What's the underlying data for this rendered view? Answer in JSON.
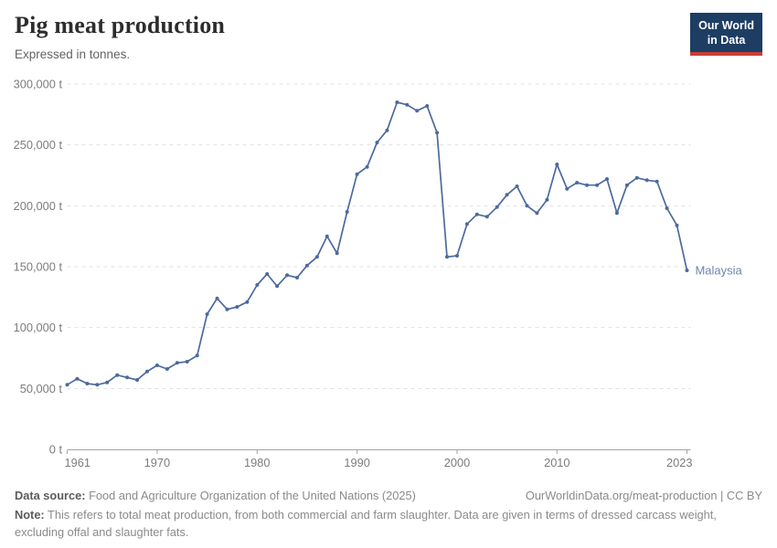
{
  "header": {
    "title": "Pig meat production",
    "subtitle": "Expressed in tonnes.",
    "logo": {
      "line1": "Our World",
      "line2": "in Data",
      "bg_color": "#1d3d63",
      "accent_color": "#cd3d34"
    }
  },
  "chart_data": {
    "type": "line",
    "title": "Pig meat production",
    "subtitle": "Expressed in tonnes.",
    "grid": "horizontal dashed",
    "legend_position": "end-of-line label",
    "xlim": [
      1961,
      2023
    ],
    "ylim": [
      0,
      300000
    ],
    "x_ticks": [
      1961,
      1970,
      1980,
      1990,
      2000,
      2010,
      2023
    ],
    "y_ticks": [
      0,
      50000,
      100000,
      150000,
      200000,
      250000,
      300000
    ],
    "y_tick_suffix": " t",
    "series": [
      {
        "name": "Malaysia",
        "color": "#4C6A9C",
        "label_color": "#6d84ad",
        "x": [
          1961,
          1962,
          1963,
          1964,
          1965,
          1966,
          1967,
          1968,
          1969,
          1970,
          1971,
          1972,
          1973,
          1974,
          1975,
          1976,
          1977,
          1978,
          1979,
          1980,
          1981,
          1982,
          1983,
          1984,
          1985,
          1986,
          1987,
          1988,
          1989,
          1990,
          1991,
          1992,
          1993,
          1994,
          1995,
          1996,
          1997,
          1998,
          1999,
          2000,
          2001,
          2002,
          2003,
          2004,
          2005,
          2006,
          2007,
          2008,
          2009,
          2010,
          2011,
          2012,
          2013,
          2014,
          2015,
          2016,
          2017,
          2018,
          2019,
          2020,
          2021,
          2022,
          2023
        ],
        "values": [
          53000,
          58000,
          54000,
          53000,
          55000,
          61000,
          59000,
          57000,
          64000,
          69000,
          66000,
          71000,
          72000,
          77000,
          111000,
          124000,
          115000,
          117000,
          121000,
          135000,
          144000,
          134000,
          143000,
          141000,
          151000,
          158000,
          175000,
          161000,
          195000,
          226000,
          232000,
          252000,
          262000,
          285000,
          283000,
          278000,
          282000,
          260000,
          158000,
          159000,
          185000,
          193000,
          191000,
          199000,
          209000,
          216000,
          200000,
          194000,
          205000,
          234000,
          214000,
          219000,
          217000,
          217000,
          222000,
          194000,
          217000,
          223000,
          221000,
          220000,
          198000,
          184000,
          147000
        ]
      }
    ]
  },
  "footer": {
    "source_label": "Data source:",
    "source_text": " Food and Agriculture Organization of the United Nations (2025)",
    "link_text": "OurWorldinData.org/meat-production | CC BY",
    "note_label": "Note:",
    "note_text": " This refers to total meat production, from both commercial and farm slaughter. Data are given in terms of dressed carcass weight, excluding offal and slaughter fats."
  }
}
